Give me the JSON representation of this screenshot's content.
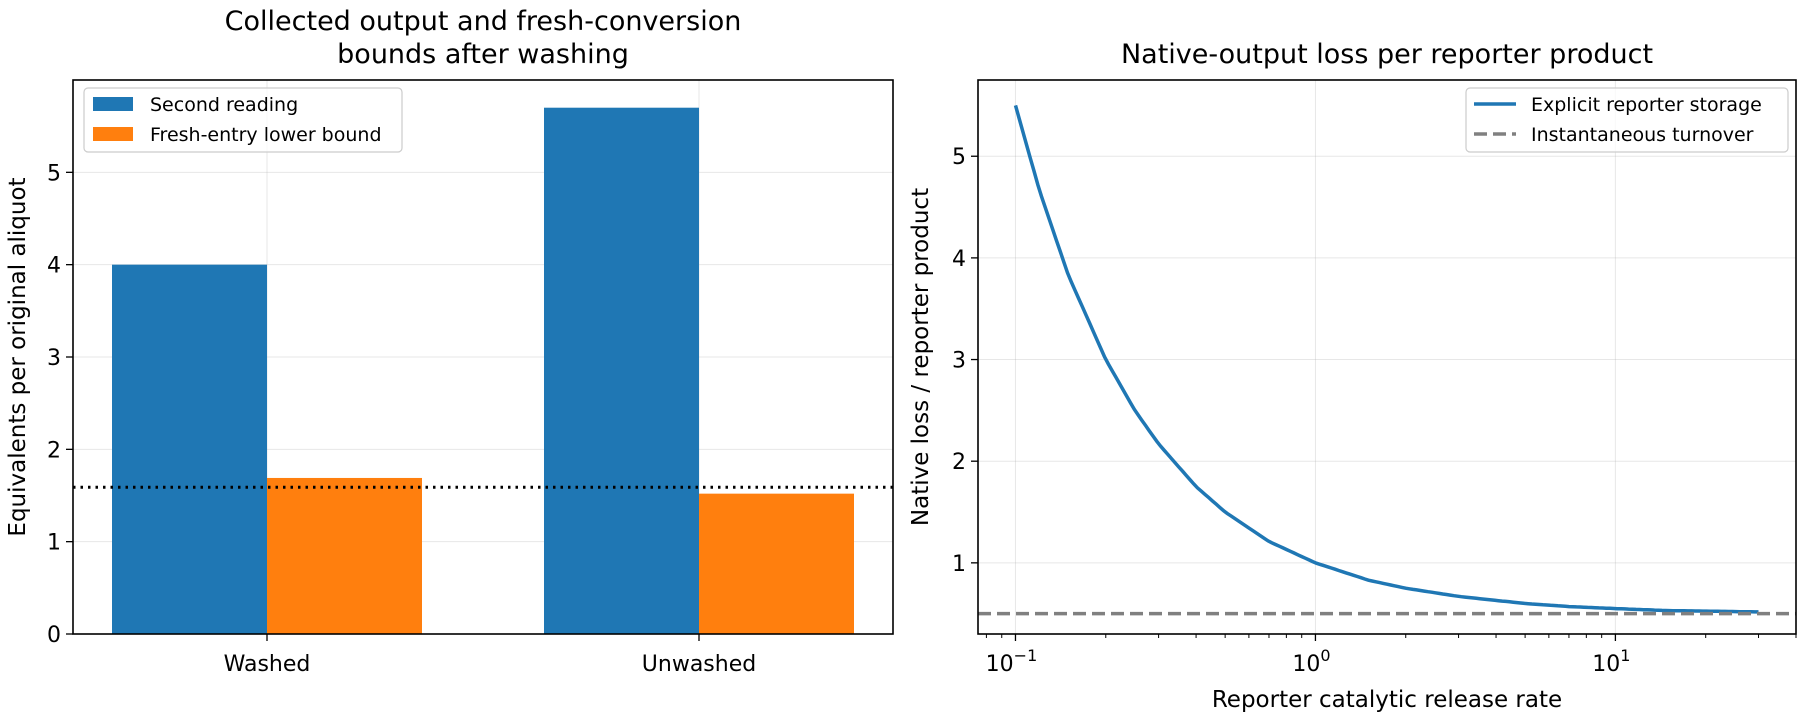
{
  "chart_data": [
    {
      "type": "bar",
      "title_lines": [
        "Collected output and fresh-conversion",
        "bounds after washing"
      ],
      "xlabel": "",
      "ylabel": "Equivalents per original aliquot",
      "categories": [
        "Washed",
        "Unwashed"
      ],
      "series": [
        {
          "name": "Second reading",
          "values": [
            4.0,
            5.7
          ],
          "color": "#1f77b4"
        },
        {
          "name": "Fresh-entry lower bound",
          "values": [
            1.69,
            1.52
          ],
          "color": "#ff7f0e"
        }
      ],
      "reference_line": {
        "y": 1.59,
        "style": "dotted",
        "color": "#000000"
      },
      "ylim": [
        0,
        6
      ],
      "yticks": [
        "0",
        "1",
        "2",
        "3",
        "4",
        "5"
      ],
      "grid": true,
      "legend_position": "upper-left"
    },
    {
      "type": "line",
      "title": "Native-output loss per reporter product",
      "xlabel": "Reporter catalytic release rate",
      "ylabel": "Native loss / reporter product",
      "x_scale": "log",
      "xlim": [
        0.075,
        40
      ],
      "ylim": [
        0.3,
        5.75
      ],
      "xticks": [
        {
          "base": "10",
          "exp": "−1",
          "value": 0.1
        },
        {
          "base": "10",
          "exp": "0",
          "value": 1
        },
        {
          "base": "10",
          "exp": "1",
          "value": 10
        }
      ],
      "yticks": [
        "1",
        "2",
        "3",
        "4",
        "5"
      ],
      "series": [
        {
          "name": "Explicit reporter storage",
          "color": "#1f77b4",
          "style": "solid",
          "x": [
            0.1,
            0.12,
            0.15,
            0.2,
            0.25,
            0.3,
            0.4,
            0.5,
            0.7,
            1,
            1.5,
            2,
            3,
            5,
            7,
            10,
            15,
            20,
            30
          ],
          "y": [
            5.5,
            4.67,
            3.83,
            3.0,
            2.5,
            2.17,
            1.75,
            1.5,
            1.21,
            1.0,
            0.83,
            0.75,
            0.67,
            0.6,
            0.57,
            0.55,
            0.53,
            0.525,
            0.517
          ]
        },
        {
          "name": "Instantaneous turnover",
          "color": "#808080",
          "style": "dashed",
          "constant_y": 0.5
        }
      ],
      "grid": true,
      "legend_position": "upper-right"
    }
  ]
}
